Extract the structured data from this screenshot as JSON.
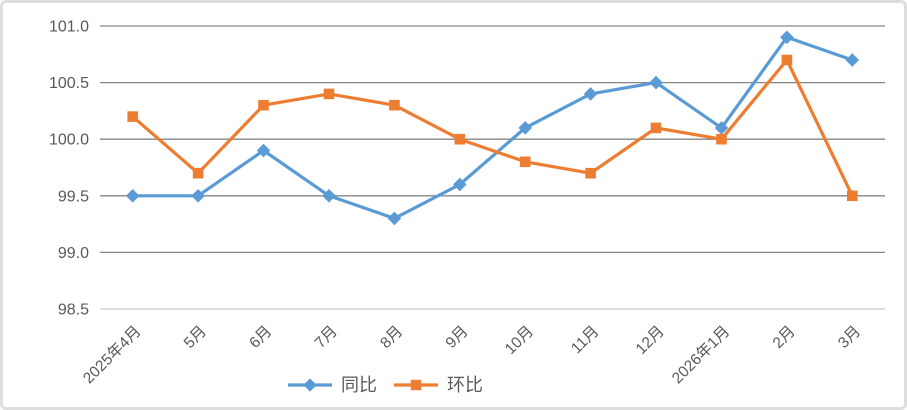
{
  "colors": {
    "gridline": "#868686",
    "axis_line": "#c9c9c9",
    "tick_text": "#595959",
    "background": "#ffffff",
    "frame_border": "#dedede",
    "series_yoy": "#5B9BD5",
    "series_mom": "#ED7D31"
  },
  "chart_data": {
    "type": "line",
    "title": "",
    "categories": [
      "2025年4月",
      "5月",
      "6月",
      "7月",
      "8月",
      "9月",
      "10月",
      "11月",
      "12月",
      "2026年1月",
      "2月",
      "3月"
    ],
    "series": [
      {
        "id": "yoy",
        "name": "同比",
        "marker": "diamond",
        "color": "#5B9BD5",
        "values": [
          99.5,
          99.5,
          99.9,
          99.5,
          99.3,
          99.6,
          100.1,
          100.4,
          100.5,
          100.1,
          100.9,
          100.7
        ]
      },
      {
        "id": "mom",
        "name": "环比",
        "marker": "square",
        "color": "#ED7D31",
        "values": [
          100.2,
          99.7,
          100.3,
          100.4,
          100.3,
          100.0,
          99.8,
          99.7,
          100.1,
          100.0,
          100.7,
          99.5
        ]
      }
    ],
    "ylim": [
      98.5,
      101.0
    ],
    "yticks": [
      101.0,
      100.5,
      100.0,
      99.5,
      99.0,
      98.5
    ],
    "grid": true,
    "legend_position": "bottom"
  }
}
